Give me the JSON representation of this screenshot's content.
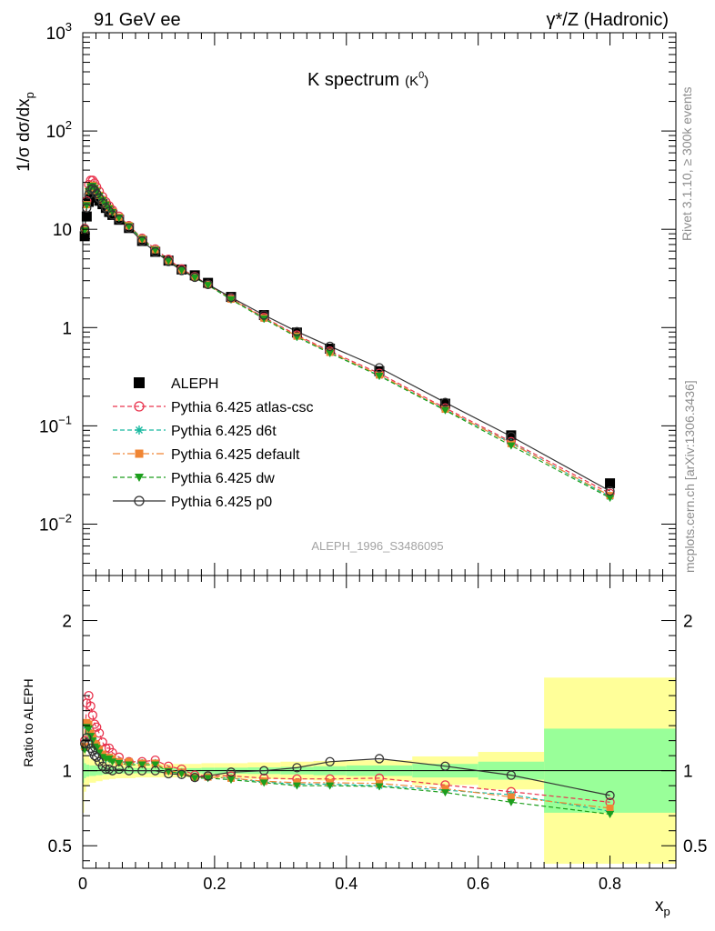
{
  "header": {
    "left": "91 GeV ee",
    "right": "γ*/Z (Hadronic)"
  },
  "side_labels": {
    "rivet": "Rivet 3.1.10, ≥ 300k events",
    "mcplots": "mcplots.cern.ch [arXiv:1306.3436]"
  },
  "chart_data": {
    "type": "scatter",
    "title": "K spectrum",
    "title_sub": "(K",
    "title_sup": "0",
    "title_close": ")",
    "analysis_label": "ALEPH_1996_S3486095",
    "xlabel": "x",
    "xlabel_sub": "p",
    "ylabel": "1/σ dσ/dx",
    "ylabel_sub": "p",
    "ratio_ylabel": "Ratio to ALEPH",
    "xlim": [
      0,
      0.9
    ],
    "ylim": [
      0.003,
      1000
    ],
    "yscale": "log",
    "ratio_ylim": [
      0.35,
      2.3
    ],
    "x_ticks": [
      "0",
      "0.2",
      "0.4",
      "0.6",
      "0.8"
    ],
    "y_ticks": [
      "10^-2",
      "10^-1",
      "1",
      "10",
      "10^2",
      "10^3"
    ],
    "ratio_ticks": [
      "0.5",
      "1",
      "2"
    ],
    "legend_position": "lower-left",
    "x": [
      0.003,
      0.006,
      0.009,
      0.012,
      0.015,
      0.018,
      0.021,
      0.025,
      0.03,
      0.035,
      0.04,
      0.045,
      0.055,
      0.07,
      0.09,
      0.11,
      0.13,
      0.15,
      0.17,
      0.19,
      0.225,
      0.275,
      0.325,
      0.375,
      0.45,
      0.55,
      0.65,
      0.8
    ],
    "series": [
      {
        "name": "ALEPH",
        "color": "#000000",
        "marker": "square",
        "values": [
          8.5,
          13.5,
          19.0,
          22.0,
          23.0,
          22.5,
          21.0,
          19.5,
          18.0,
          16.5,
          15.0,
          14.0,
          12.5,
          10.3,
          7.6,
          5.9,
          4.8,
          3.9,
          3.4,
          2.85,
          2.05,
          1.34,
          0.89,
          0.61,
          0.36,
          0.168,
          0.08,
          0.026
        ]
      },
      {
        "name": "Pythia 6.425 atlas-csc",
        "color": "#e9344e",
        "marker": "open-circle",
        "line": "dashed",
        "values": [
          10.2,
          19.5,
          28.5,
          31.5,
          31.5,
          29.5,
          27.0,
          24.3,
          21.5,
          19.0,
          17.3,
          15.7,
          13.6,
          10.9,
          8.1,
          6.3,
          4.95,
          3.95,
          3.3,
          2.75,
          1.98,
          1.27,
          0.84,
          0.575,
          0.342,
          0.152,
          0.069,
          0.0205
        ]
      },
      {
        "name": "Pythia 6.425 d6t",
        "color": "#19b9a0",
        "marker": "asterisk",
        "line": "dashed",
        "values": [
          9.8,
          17.6,
          24.5,
          27.2,
          27.8,
          26.3,
          24.3,
          22.0,
          19.8,
          17.9,
          16.3,
          15.0,
          13.2,
          10.8,
          8.0,
          6.2,
          4.8,
          3.85,
          3.25,
          2.73,
          1.95,
          1.24,
          0.81,
          0.555,
          0.325,
          0.146,
          0.067,
          0.019
        ]
      },
      {
        "name": "Pythia 6.425 default",
        "color": "#f08533",
        "marker": "filled-square",
        "line": "dash-dot",
        "values": [
          9.9,
          17.8,
          24.8,
          27.5,
          28.0,
          26.5,
          24.5,
          22.2,
          20.0,
          18.0,
          16.4,
          15.1,
          13.3,
          10.9,
          8.0,
          6.2,
          4.8,
          3.85,
          3.25,
          2.73,
          1.95,
          1.25,
          0.82,
          0.56,
          0.33,
          0.148,
          0.066,
          0.0195
        ]
      },
      {
        "name": "Pythia 6.425 dw",
        "color": "#1c9e1c",
        "marker": "filled-triangle-down",
        "line": "dashed",
        "values": [
          9.7,
          17.5,
          24.3,
          27.0,
          27.6,
          26.2,
          24.2,
          21.9,
          19.7,
          17.8,
          16.2,
          14.9,
          13.1,
          10.7,
          7.9,
          6.15,
          4.78,
          3.83,
          3.22,
          2.7,
          1.93,
          1.23,
          0.8,
          0.55,
          0.322,
          0.144,
          0.063,
          0.0185
        ]
      },
      {
        "name": "Pythia 6.425 p0",
        "color": "#333333",
        "marker": "open-circle",
        "line": "solid",
        "values": [
          10.0,
          16.5,
          22.5,
          25.3,
          26.0,
          24.8,
          23.0,
          20.7,
          18.5,
          16.6,
          15.2,
          14.0,
          12.6,
          10.3,
          7.6,
          5.9,
          4.7,
          3.8,
          3.25,
          2.75,
          2.03,
          1.34,
          0.91,
          0.645,
          0.39,
          0.173,
          0.078,
          0.0217
        ]
      }
    ],
    "ratio": {
      "x": [
        0.003,
        0.006,
        0.009,
        0.012,
        0.015,
        0.018,
        0.021,
        0.025,
        0.03,
        0.035,
        0.04,
        0.045,
        0.055,
        0.07,
        0.09,
        0.11,
        0.13,
        0.15,
        0.17,
        0.19,
        0.225,
        0.275,
        0.325,
        0.375,
        0.45,
        0.55,
        0.65,
        0.8
      ],
      "series": [
        {
          "name": "Pythia 6.425 atlas-csc",
          "values": [
            1.2,
            1.45,
            1.5,
            1.43,
            1.37,
            1.31,
            1.29,
            1.25,
            1.19,
            1.15,
            1.15,
            1.12,
            1.09,
            1.06,
            1.06,
            1.07,
            1.03,
            1.01,
            0.97,
            0.965,
            0.965,
            0.95,
            0.945,
            0.945,
            0.95,
            0.905,
            0.86,
            0.79
          ]
        },
        {
          "name": "Pythia 6.425 d6t",
          "values": [
            1.15,
            1.3,
            1.29,
            1.24,
            1.21,
            1.17,
            1.16,
            1.13,
            1.1,
            1.08,
            1.09,
            1.07,
            1.06,
            1.05,
            1.05,
            1.05,
            1.0,
            0.99,
            0.955,
            0.958,
            0.95,
            0.925,
            0.91,
            0.91,
            0.9,
            0.87,
            0.84,
            0.73
          ]
        },
        {
          "name": "Pythia 6.425 default",
          "values": [
            1.16,
            1.32,
            1.31,
            1.25,
            1.22,
            1.18,
            1.17,
            1.14,
            1.11,
            1.09,
            1.09,
            1.08,
            1.06,
            1.06,
            1.05,
            1.05,
            1.0,
            0.99,
            0.955,
            0.958,
            0.95,
            0.93,
            0.92,
            0.92,
            0.915,
            0.88,
            0.825,
            0.75
          ]
        },
        {
          "name": "Pythia 6.425 dw",
          "values": [
            1.14,
            1.29,
            1.28,
            1.23,
            1.2,
            1.16,
            1.15,
            1.12,
            1.09,
            1.08,
            1.08,
            1.06,
            1.05,
            1.04,
            1.04,
            1.04,
            0.995,
            0.98,
            0.95,
            0.95,
            0.94,
            0.92,
            0.9,
            0.9,
            0.895,
            0.855,
            0.79,
            0.71
          ]
        },
        {
          "name": "Pythia 6.425 p0",
          "values": [
            1.18,
            1.22,
            1.18,
            1.15,
            1.13,
            1.1,
            1.09,
            1.06,
            1.03,
            1.01,
            1.01,
            1.0,
            1.01,
            1.0,
            1.0,
            1.0,
            0.98,
            0.975,
            0.955,
            0.965,
            0.99,
            1.0,
            1.02,
            1.06,
            1.08,
            1.03,
            0.97,
            0.835
          ]
        }
      ],
      "bands": {
        "edges": [
          0,
          0.002,
          0.005,
          0.01,
          0.02,
          0.03,
          0.04,
          0.05,
          0.06,
          0.08,
          0.1,
          0.12,
          0.14,
          0.16,
          0.18,
          0.2,
          0.25,
          0.3,
          0.35,
          0.4,
          0.5,
          0.6,
          0.7,
          0.9
        ],
        "stat_lo": [
          0.92,
          0.95,
          0.96,
          0.965,
          0.97,
          0.975,
          0.978,
          0.98,
          0.982,
          0.983,
          0.983,
          0.983,
          0.983,
          0.983,
          0.98,
          0.98,
          0.978,
          0.975,
          0.97,
          0.965,
          0.955,
          0.94,
          0.72
        ],
        "stat_hi": [
          1.08,
          1.05,
          1.04,
          1.035,
          1.03,
          1.025,
          1.022,
          1.02,
          1.018,
          1.017,
          1.017,
          1.017,
          1.017,
          1.017,
          1.02,
          1.02,
          1.022,
          1.025,
          1.03,
          1.035,
          1.045,
          1.06,
          1.28
        ],
        "tot_lo": [
          0.72,
          0.86,
          0.9,
          0.92,
          0.93,
          0.94,
          0.945,
          0.95,
          0.95,
          0.955,
          0.955,
          0.955,
          0.955,
          0.955,
          0.95,
          0.95,
          0.945,
          0.94,
          0.935,
          0.93,
          0.905,
          0.875,
          0.38
        ],
        "tot_hi": [
          1.28,
          1.14,
          1.1,
          1.08,
          1.07,
          1.06,
          1.055,
          1.05,
          1.05,
          1.045,
          1.045,
          1.045,
          1.045,
          1.045,
          1.05,
          1.05,
          1.055,
          1.06,
          1.065,
          1.07,
          1.095,
          1.125,
          1.62
        ]
      }
    }
  }
}
